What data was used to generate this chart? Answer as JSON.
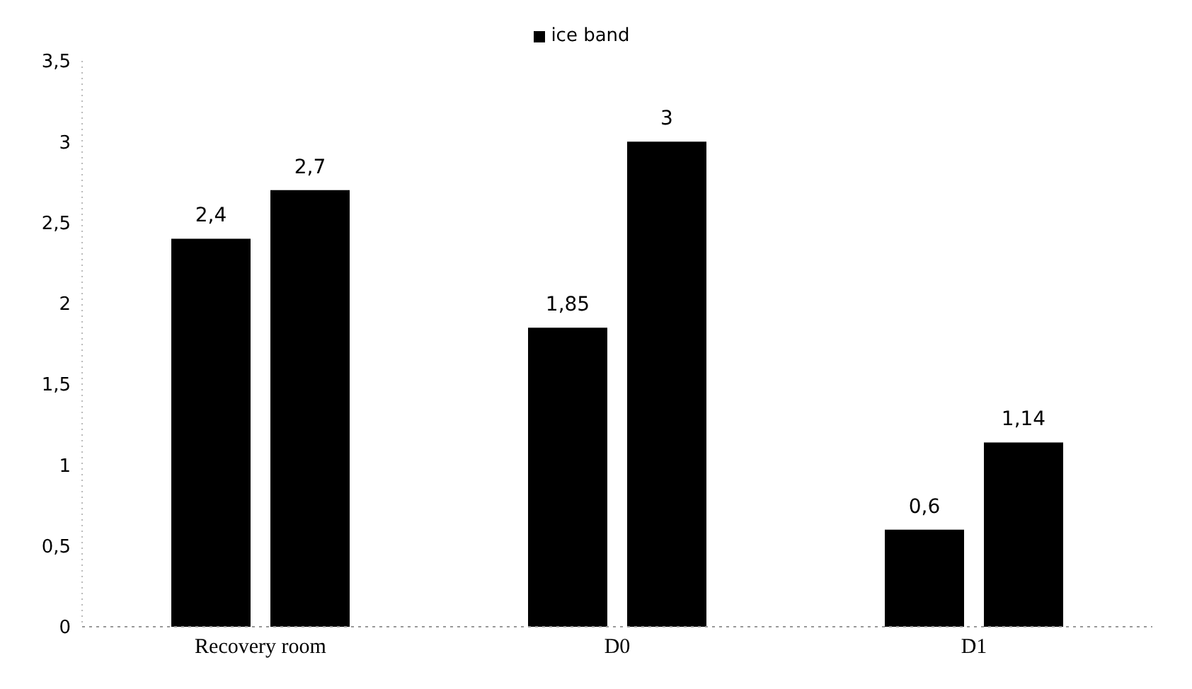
{
  "chart_data": {
    "type": "bar",
    "categories": [
      "Recovery room",
      "D0",
      "D1"
    ],
    "series": [
      {
        "color": "#000000",
        "values": [
          2.4,
          1.85,
          0.6
        ],
        "value_labels": [
          "2,4",
          "1,85",
          "0,6"
        ]
      },
      {
        "name": "ice band",
        "color": "#000000",
        "values": [
          2.7,
          3,
          1.14
        ],
        "value_labels": [
          "2,7",
          "3",
          "1,14"
        ]
      }
    ],
    "ylim": [
      0,
      3.5
    ],
    "yticks": [
      0,
      {
        "value": 0.5,
        "label": "0,5"
      },
      1,
      {
        "value": 1.5,
        "label": "1,5"
      },
      2,
      {
        "value": 2.5,
        "label": "2,5"
      },
      3,
      {
        "value": 3.5,
        "label": "3,5"
      }
    ],
    "grid": false,
    "legend": "top"
  }
}
